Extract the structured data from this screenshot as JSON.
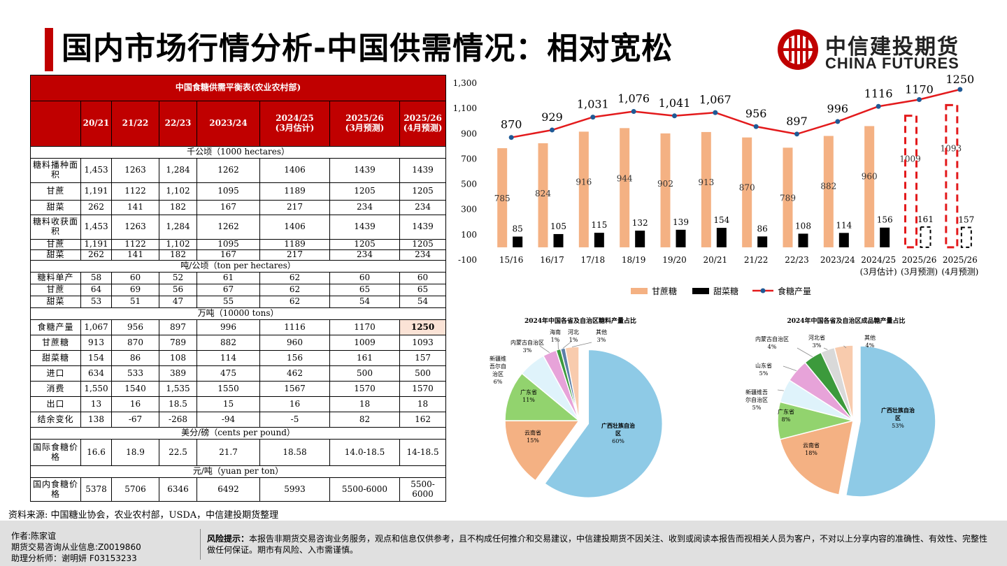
{
  "title": "国内市场行情分析-中国供需情况：相对宽松",
  "logo": {
    "cn": "中信建投期货",
    "en": "CHINA FUTURES"
  },
  "table": {
    "caption": "中国食糖供需平衡表(农业农村部)",
    "headers": [
      "",
      "20/21",
      "21/22",
      "22/23",
      "2023/24",
      "2024/25\n(3月估计)",
      "2025/26\n(3月预测)",
      "2025/26\n(4月预测)"
    ],
    "units": {
      "area": "千公顷（1000 hectares）",
      "yield": "吨/公顷（ton per hectares）",
      "volume": "万吨（10000 tons）",
      "cents": "美分/磅（cents per pound）",
      "yuan": "元/吨（yuan per ton）"
    },
    "area_rows": [
      [
        "糖料播种面积",
        "1,453",
        "1263",
        "1,284",
        "1262",
        "1406",
        "1439",
        "1439"
      ],
      [
        "甘蔗",
        "1,191",
        "1122",
        "1,102",
        "1095",
        "1189",
        "1205",
        "1205"
      ],
      [
        "甜菜",
        "262",
        "141",
        "182",
        "167",
        "217",
        "234",
        "234"
      ],
      [
        "糖料收获面积",
        "1,453",
        "1263",
        "1,284",
        "1262",
        "1406",
        "1439",
        "1439"
      ],
      [
        "甘蔗",
        "1,191",
        "1122",
        "1,102",
        "1095",
        "1189",
        "1205",
        "1205"
      ],
      [
        "甜菜",
        "262",
        "141",
        "182",
        "167",
        "217",
        "234",
        "234"
      ]
    ],
    "yield_rows": [
      [
        "糖料单产",
        "58",
        "60",
        "52",
        "61",
        "62",
        "60",
        "60"
      ],
      [
        "甘蔗",
        "64",
        "69",
        "56",
        "67",
        "62",
        "65",
        "65"
      ],
      [
        "甜菜",
        "53",
        "51",
        "47",
        "55",
        "62",
        "54",
        "54"
      ]
    ],
    "volume_rows": [
      [
        "食糖产量",
        "1,067",
        "956",
        "897",
        "996",
        "1116",
        "1170",
        "1250"
      ],
      [
        "甘蔗糖",
        "913",
        "870",
        "789",
        "882",
        "960",
        "1009",
        "1093"
      ],
      [
        "甜菜糖",
        "154",
        "86",
        "108",
        "114",
        "156",
        "161",
        "157"
      ],
      [
        "进口",
        "634",
        "533",
        "389",
        "475",
        "462",
        "500",
        "500"
      ],
      [
        "消费",
        "1,550",
        "1540",
        "1,535",
        "1550",
        "1567",
        "1570",
        "1570"
      ],
      [
        "出口",
        "13",
        "16",
        "18.5",
        "15",
        "16",
        "18",
        "18"
      ],
      [
        "结余变化",
        "138",
        "-67",
        "-268",
        "-94",
        "-5",
        "82",
        "162"
      ]
    ],
    "cents_rows": [
      [
        "国际食糖价格",
        "16.6",
        "18.9",
        "22.5",
        "21.7",
        "18.58",
        "14.0-18.5",
        "14-18.5"
      ]
    ],
    "yuan_rows": [
      [
        "国内食糖价格",
        "5378",
        "5706",
        "6346",
        "6492",
        "5993",
        "5500-6000",
        "5500-6000"
      ]
    ]
  },
  "source": "资料来源: 中国糖业协会，农业农村部，USDA，中信建投期货整理",
  "footer": {
    "author": "作者:陈家谊",
    "license": "期货交易咨询从业信息:Z0019860",
    "assistant": "助理分析师：谢明妍  F03153233",
    "risk_label": "风险提示：",
    "risk_text": "本报告非期货交易咨询业务服务，观点和信息仅供参考，且不构成任何推介和交易建议，中信建投期货不因关注、收到或阅读本报告而视相关人员为客户，不对以上分享内容的准确性、有效性、完整性做任何保证。期市有风险、入市需谨慎。"
  },
  "colors": {
    "brand_red": "#c00000",
    "cane": "#f4b183",
    "beet": "#000000",
    "line": "#e31a1c",
    "marker": "#1f5a96"
  },
  "chart_data": [
    {
      "type": "bar",
      "title": "",
      "categories": [
        "15/16",
        "16/17",
        "17/18",
        "18/19",
        "19/20",
        "20/21",
        "21/22",
        "22/23",
        "2023/24",
        "2024/25\n(3月估计)",
        "2025/26\n(3月预测)",
        "2025/26\n(4月预测)"
      ],
      "series": [
        {
          "name": "甘蔗糖",
          "kind": "bar",
          "values": [
            785,
            824,
            916,
            944,
            902,
            913,
            870,
            789,
            882,
            960,
            1009,
            1093
          ],
          "labels": [
            "785",
            "824",
            "916",
            "944",
            "902",
            "913",
            "870",
            "789",
            "882",
            "960",
            "1009",
            "1093"
          ]
        },
        {
          "name": "甜菜糖",
          "kind": "bar",
          "values": [
            85,
            105,
            115,
            132,
            139,
            154,
            86,
            108,
            114,
            156,
            161,
            157
          ],
          "labels": [
            "85",
            "105",
            "115",
            "132",
            "139",
            "154",
            "86",
            "108",
            "114",
            "156",
            "161",
            "157"
          ]
        },
        {
          "name": "食糖产量",
          "kind": "line",
          "values": [
            870,
            929,
            1031,
            1076,
            1041,
            1067,
            956,
            897,
            996,
            1116,
            1170,
            1250
          ],
          "labels": [
            "870",
            "929",
            "1,031",
            "1,076",
            "1,041",
            "1,067",
            "956",
            "897",
            "996",
            "1116",
            "1170",
            "1250"
          ]
        }
      ],
      "forecast_highlight": [
        10,
        11
      ],
      "ylim": [
        -100,
        1300
      ],
      "yticks": [
        -100,
        100,
        300,
        500,
        700,
        900,
        1100,
        1300
      ],
      "ytick_labels": [
        "-100",
        "100",
        "300",
        "500",
        "700",
        "900",
        "1,100",
        "1,300"
      ],
      "legend": [
        "甘蔗糖",
        "甜菜糖",
        "食糖产量"
      ],
      "legend_position": "bottom"
    },
    {
      "type": "pie",
      "title": "2024年中国各省及自治区糖料产量占比",
      "slices": [
        {
          "name": "广西壮族自治区",
          "value": 60,
          "label": "60%",
          "color": "#8ecae6"
        },
        {
          "name": "云南省",
          "value": 15,
          "label": "15%",
          "color": "#f4b183"
        },
        {
          "name": "广东省",
          "value": 11,
          "label": "11%",
          "color": "#92d36e"
        },
        {
          "name": "新疆维吾尔自治区",
          "value": 6,
          "label": "6%",
          "color": "#dff3fb"
        },
        {
          "name": "内蒙古自治区",
          "value": 3,
          "label": "3%",
          "color": "#e7a3d9"
        },
        {
          "name": "海南",
          "value": 1,
          "label": "1%",
          "color": "#3c9a3c"
        },
        {
          "name": "河北",
          "value": 1,
          "label": "1%",
          "color": "#5b7fa8"
        },
        {
          "name": "其他",
          "value": 3,
          "label": "3%",
          "color": "#f8cbad"
        }
      ]
    },
    {
      "type": "pie",
      "title": "2024年中国各省及自治区成品糖产量占比",
      "slices": [
        {
          "name": "广西壮族自治区",
          "value": 53,
          "label": "53%",
          "color": "#8ecae6"
        },
        {
          "name": "云南省",
          "value": 18,
          "label": "18%",
          "color": "#f4b183"
        },
        {
          "name": "广东省",
          "value": 8,
          "label": "8%",
          "color": "#92d36e"
        },
        {
          "name": "新疆维吾尔自治区",
          "value": 5,
          "label": "5%",
          "color": "#dff3fb"
        },
        {
          "name": "山东省",
          "value": 5,
          "label": "5%",
          "color": "#e7a3d9"
        },
        {
          "name": "内蒙古自治区",
          "value": 4,
          "label": "4%",
          "color": "#3c9a3c"
        },
        {
          "name": "河北省",
          "value": 3,
          "label": "3%",
          "color": "#d9d9d9"
        },
        {
          "name": "其他",
          "value": 4,
          "label": "4%",
          "color": "#f8cbad"
        }
      ]
    }
  ]
}
